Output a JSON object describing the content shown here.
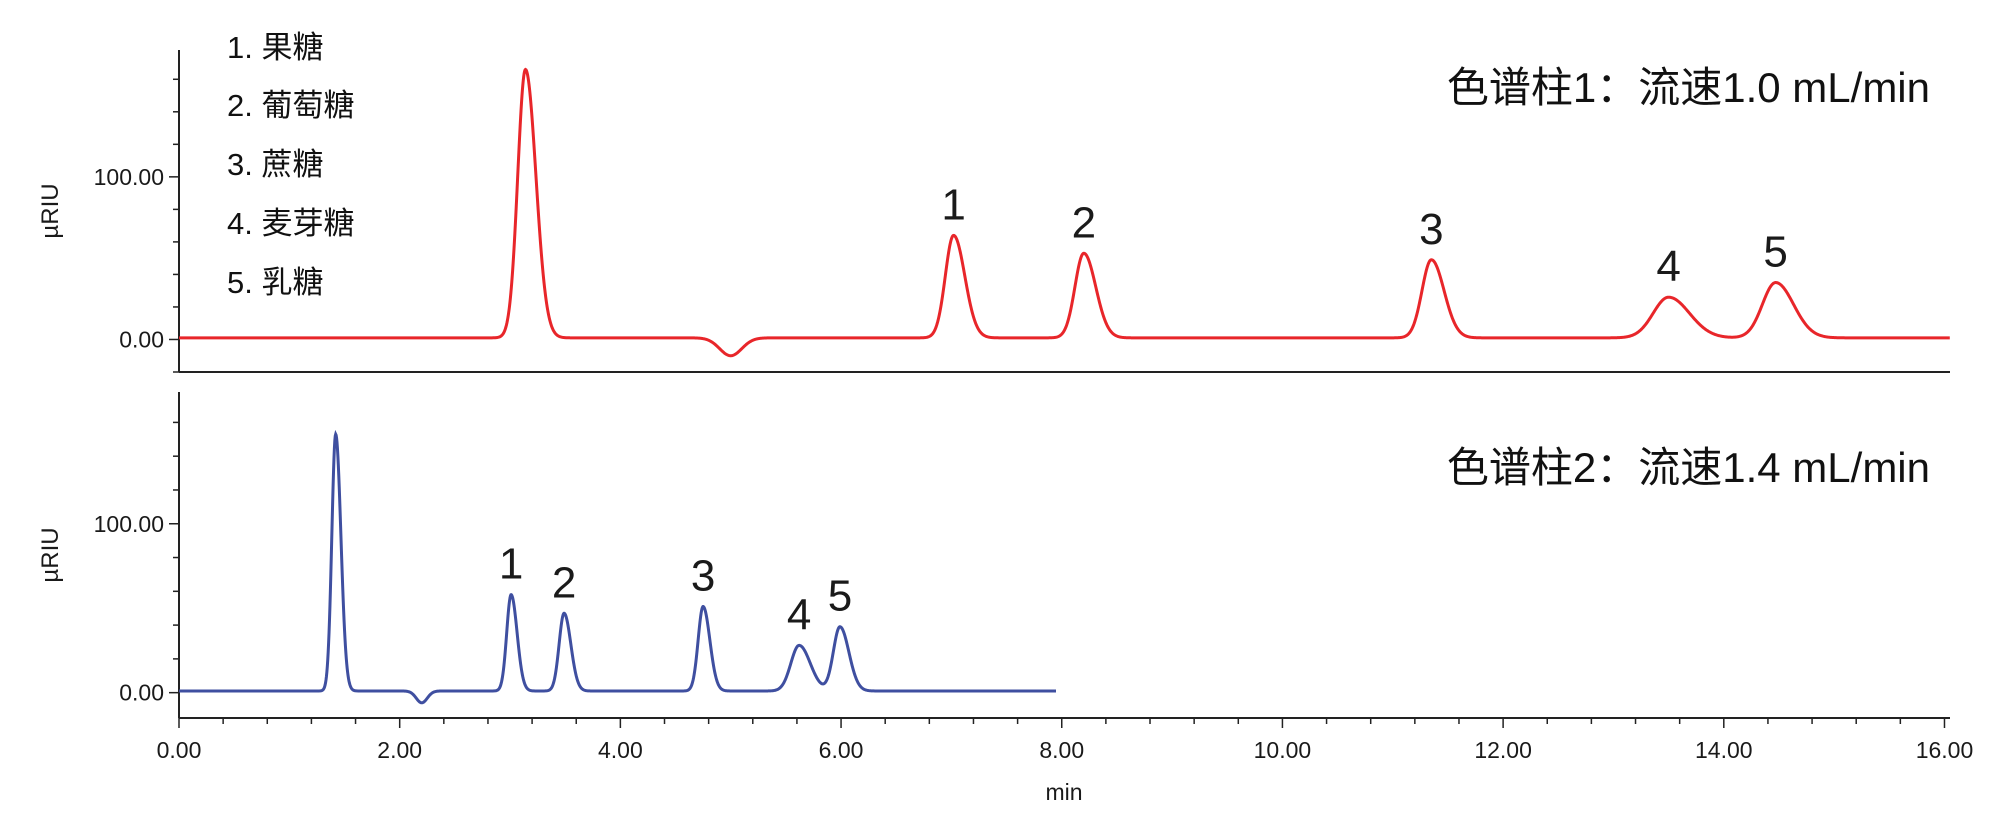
{
  "chart_data": {
    "type": "line",
    "xlabel": "min",
    "x_ticks": [
      "0.00",
      "2.00",
      "4.00",
      "6.00",
      "8.00",
      "10.00",
      "12.00",
      "14.00",
      "16.00"
    ],
    "xlim": [
      0,
      16.05
    ],
    "legend_items": [
      "1. 果糖",
      "2. 葡萄糖",
      "3. 蔗糖",
      "4. 麦芽糖",
      "5. 乳糖"
    ],
    "panels": [
      {
        "title": "色谱柱1：流速1.0 mL/min",
        "ylabel": "µRIU",
        "y_ticks": [
          "0.00",
          "100.00"
        ],
        "ylim": [
          -20,
          178
        ],
        "color": "#e8262a",
        "x_range": [
          0,
          16.05
        ],
        "baseline": 1,
        "peaks": [
          {
            "label": "",
            "x": 3.14,
            "height": 165,
            "width": 0.07
          },
          {
            "label": "1",
            "x": 7.02,
            "height": 63,
            "width": 0.075
          },
          {
            "label": "2",
            "x": 8.2,
            "height": 52,
            "width": 0.08
          },
          {
            "label": "3",
            "x": 11.35,
            "height": 48,
            "width": 0.085
          },
          {
            "label": "4",
            "x": 13.5,
            "height": 25,
            "width": 0.14
          },
          {
            "label": "5",
            "x": 14.47,
            "height": 34,
            "width": 0.12
          }
        ],
        "dips": [
          {
            "x": 5.0,
            "depth": -11,
            "width": 0.1
          }
        ]
      },
      {
        "title": "色谱柱2：流速1.4 mL/min",
        "ylabel": "µRIU",
        "y_ticks": [
          "0.00",
          "100.00"
        ],
        "ylim": [
          -15,
          178
        ],
        "color": "#3f4fa0",
        "x_range": [
          0,
          7.95
        ],
        "baseline": 1,
        "peaks": [
          {
            "label": "",
            "x": 1.42,
            "height": 152,
            "width": 0.035
          },
          {
            "label": "1",
            "x": 3.01,
            "height": 57,
            "width": 0.04
          },
          {
            "label": "2",
            "x": 3.49,
            "height": 46,
            "width": 0.045
          },
          {
            "label": "3",
            "x": 4.75,
            "height": 50,
            "width": 0.045
          },
          {
            "label": "4",
            "x": 5.62,
            "height": 27,
            "width": 0.075
          },
          {
            "label": "5",
            "x": 5.99,
            "height": 38,
            "width": 0.06
          }
        ],
        "dips": [
          {
            "x": 2.2,
            "depth": -7,
            "width": 0.05
          }
        ]
      }
    ]
  }
}
